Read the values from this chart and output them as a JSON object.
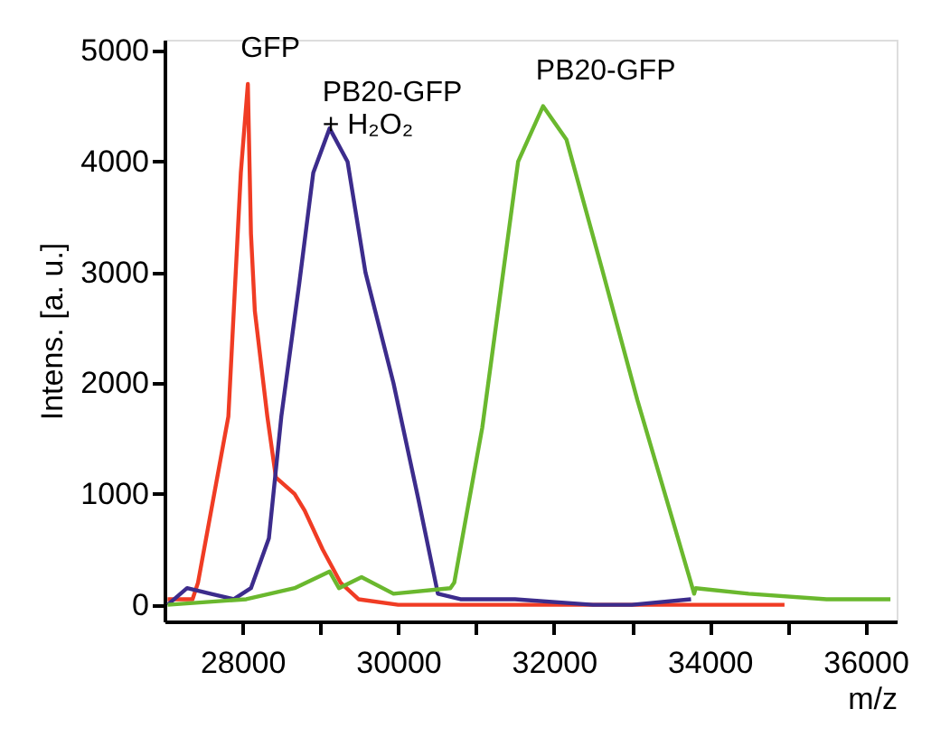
{
  "chart_data": {
    "type": "line",
    "xlabel": "m/z",
    "ylabel": "Intens. [a. u.]",
    "xlim": [
      27000,
      36400
    ],
    "ylim": [
      -150,
      5100
    ],
    "xticks": [
      28000,
      {
        "value": 29000,
        "label": null
      },
      30000,
      {
        "value": 31000,
        "label": null
      },
      32000,
      {
        "value": 33000,
        "label": null
      },
      34000,
      {
        "value": 35000,
        "label": null
      },
      36000
    ],
    "yticks": [
      0,
      1000,
      2000,
      3000,
      4000,
      5000
    ],
    "grid": false,
    "legend": false,
    "marker": "none",
    "line_style": "solid",
    "series": [
      {
        "name": "GFP",
        "color": "#f03c24",
        "x": [
          27040,
          27360,
          27430,
          27820,
          27980,
          28070,
          28110,
          28160,
          28320,
          28430,
          28670,
          28800,
          29030,
          29260,
          29490,
          30000,
          31000,
          32000,
          33000,
          34000,
          34960
        ],
        "values": [
          50,
          50,
          200,
          1700,
          3900,
          4700,
          3350,
          2650,
          1700,
          1150,
          1000,
          850,
          500,
          200,
          50,
          0,
          0,
          0,
          0,
          0,
          0
        ]
      },
      {
        "name": "PB20-GFP\n+ H₂O₂",
        "color": "#3c2c8c",
        "x": [
          27040,
          27290,
          27590,
          27890,
          28110,
          28340,
          28500,
          28730,
          28910,
          29120,
          29350,
          29580,
          29940,
          30260,
          30510,
          30800,
          31500,
          32500,
          33000,
          33760
        ],
        "values": [
          0,
          150,
          100,
          50,
          150,
          600,
          1700,
          2900,
          3900,
          4300,
          4000,
          3000,
          2000,
          950,
          100,
          50,
          50,
          0,
          0,
          50
        ]
      },
      {
        "name": "PB20-GFP",
        "color": "#6ab82e",
        "x": [
          27040,
          28050,
          28670,
          29120,
          29240,
          29530,
          29940,
          30670,
          30720,
          31080,
          31310,
          31540,
          31860,
          32160,
          32610,
          33070,
          33530,
          33800,
          33820,
          34500,
          35500,
          36320
        ],
        "values": [
          0,
          50,
          150,
          300,
          150,
          250,
          100,
          150,
          200,
          1600,
          2800,
          4000,
          4500,
          4200,
          3050,
          1850,
          750,
          100,
          150,
          100,
          50,
          50
        ]
      }
    ]
  }
}
